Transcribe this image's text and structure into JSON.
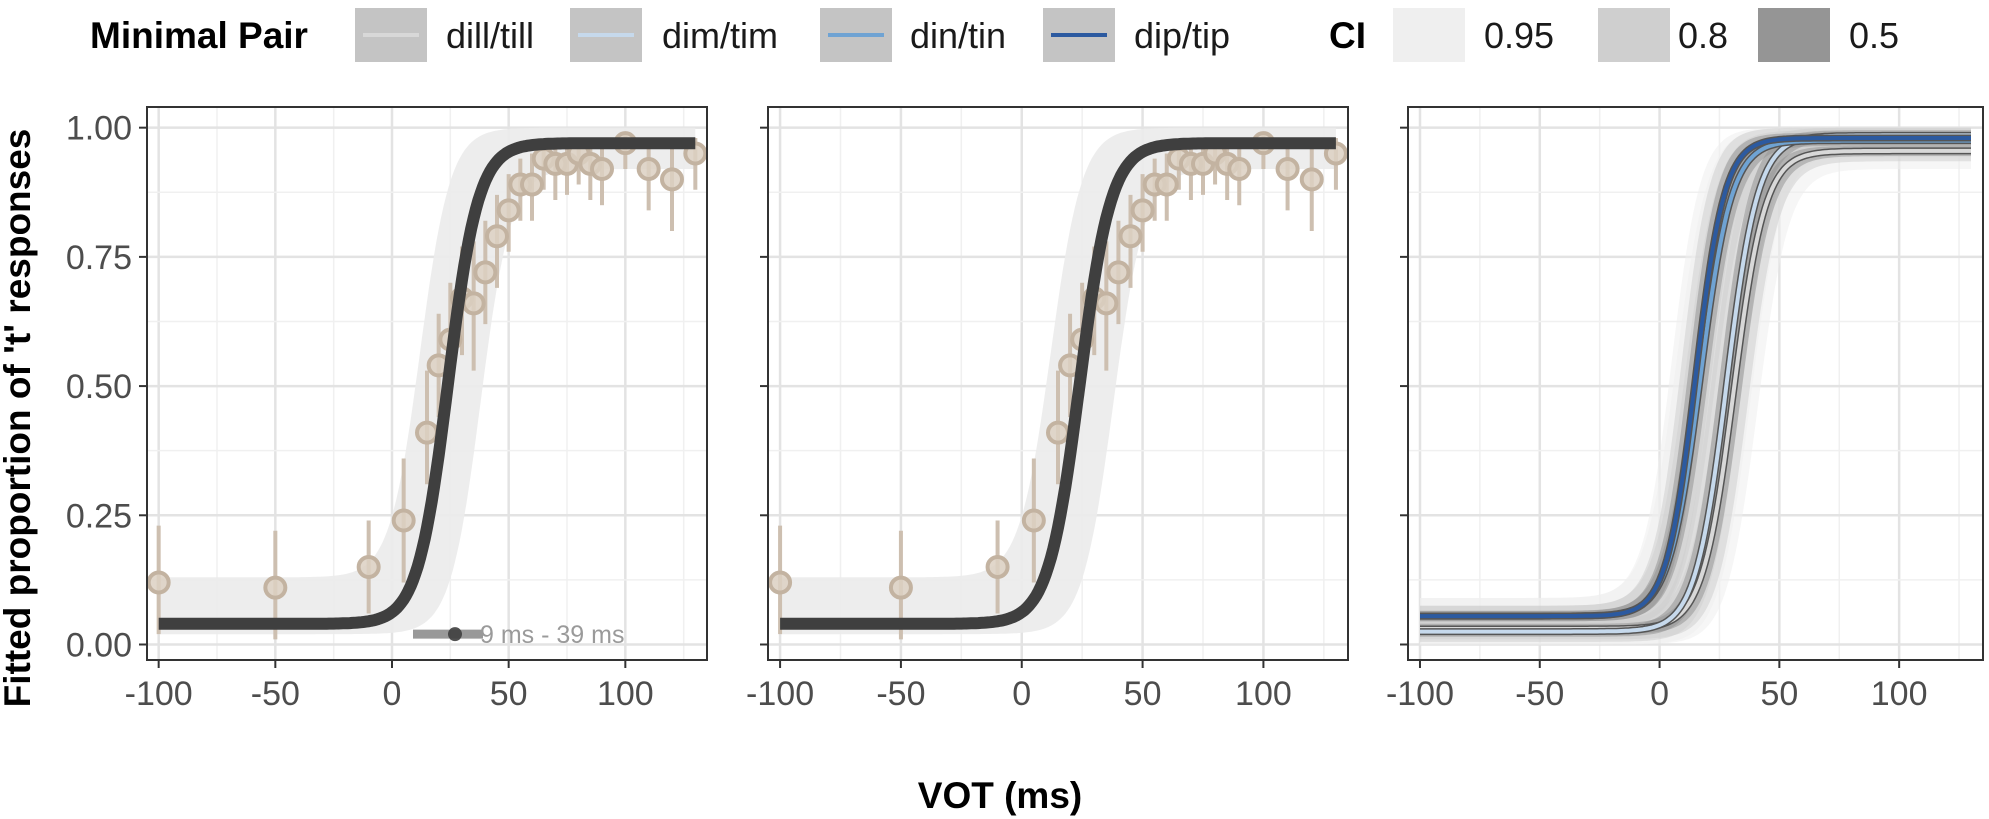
{
  "chart_data": {
    "type": "line",
    "xlabel": "VOT (ms)",
    "ylabel": "Fitted proportion of 't' responses",
    "xlim": [
      -105,
      135
    ],
    "ylim": [
      -0.03,
      1.04
    ],
    "x_ticks": [
      "-100",
      "-50",
      "0",
      "50",
      "100"
    ],
    "x_tick_values": [
      -100,
      -50,
      0,
      50,
      100
    ],
    "y_ticks": [
      "0.00",
      "0.25",
      "0.50",
      "0.75",
      "1.00"
    ],
    "y_tick_values": [
      0,
      0.25,
      0.5,
      0.75,
      1.0
    ],
    "grid": true,
    "legend": {
      "position": "top",
      "minimal_pair_title": "Minimal Pair",
      "minimal_pairs": [
        {
          "label": "dill/till",
          "color": "#d8d8d8"
        },
        {
          "label": "dim/tim",
          "color": "#c6d9ec"
        },
        {
          "label": "din/tin",
          "color": "#6fa3d3"
        },
        {
          "label": "dip/tip",
          "color": "#2c5aa0"
        }
      ],
      "ci_title": "CI",
      "ci_levels": [
        {
          "label": "0.95",
          "color": "#efefef"
        },
        {
          "label": "0.8",
          "color": "#cfcfcf"
        },
        {
          "label": "0.5",
          "color": "#959595"
        }
      ]
    },
    "panels": [
      {
        "curve": {
          "floor": 0.04,
          "ceiling": 0.97,
          "midpoint": 24,
          "scale": 6.5
        },
        "band": {
          "floor_lo": 0.02,
          "floor_hi": 0.13,
          "ceil_lo": 0.92,
          "ceil_hi": 1.0,
          "mid_lo": 12,
          "mid_hi": 38
        },
        "points": [
          {
            "x": -100,
            "y": 0.12,
            "lo": 0.02,
            "hi": 0.23
          },
          {
            "x": -50,
            "y": 0.11,
            "lo": 0.01,
            "hi": 0.22
          },
          {
            "x": -10,
            "y": 0.15,
            "lo": 0.06,
            "hi": 0.24
          },
          {
            "x": 5,
            "y": 0.24,
            "lo": 0.12,
            "hi": 0.36
          },
          {
            "x": 15,
            "y": 0.41,
            "lo": 0.31,
            "hi": 0.53
          },
          {
            "x": 20,
            "y": 0.54,
            "lo": 0.44,
            "hi": 0.64
          },
          {
            "x": 25,
            "y": 0.59,
            "lo": 0.48,
            "hi": 0.7
          },
          {
            "x": 30,
            "y": 0.67,
            "lo": 0.56,
            "hi": 0.77
          },
          {
            "x": 35,
            "y": 0.66,
            "lo": 0.53,
            "hi": 0.78
          },
          {
            "x": 40,
            "y": 0.72,
            "lo": 0.62,
            "hi": 0.82
          },
          {
            "x": 45,
            "y": 0.79,
            "lo": 0.69,
            "hi": 0.87
          },
          {
            "x": 50,
            "y": 0.84,
            "lo": 0.76,
            "hi": 0.91
          },
          {
            "x": 55,
            "y": 0.89,
            "lo": 0.82,
            "hi": 0.94
          },
          {
            "x": 60,
            "y": 0.89,
            "lo": 0.82,
            "hi": 0.95
          },
          {
            "x": 65,
            "y": 0.94,
            "lo": 0.88,
            "hi": 0.97
          },
          {
            "x": 70,
            "y": 0.93,
            "lo": 0.86,
            "hi": 0.97
          },
          {
            "x": 75,
            "y": 0.93,
            "lo": 0.87,
            "hi": 0.98
          },
          {
            "x": 80,
            "y": 0.95,
            "lo": 0.89,
            "hi": 0.98
          },
          {
            "x": 85,
            "y": 0.93,
            "lo": 0.86,
            "hi": 0.98
          },
          {
            "x": 90,
            "y": 0.92,
            "lo": 0.85,
            "hi": 0.97
          },
          {
            "x": 100,
            "y": 0.97,
            "lo": 0.92,
            "hi": 0.99
          },
          {
            "x": 110,
            "y": 0.92,
            "lo": 0.84,
            "hi": 0.97
          },
          {
            "x": 120,
            "y": 0.9,
            "lo": 0.8,
            "hi": 0.96
          },
          {
            "x": 130,
            "y": 0.95,
            "lo": 0.88,
            "hi": 0.98
          }
        ],
        "range_annotation": {
          "text": "9 ms - 39 ms",
          "from": 9,
          "to": 39,
          "dot": 27,
          "y": 0.02
        }
      },
      {
        "curve": {
          "floor": 0.04,
          "ceiling": 0.97,
          "midpoint": 24,
          "scale": 6.5
        },
        "band": {
          "floor_lo": 0.02,
          "floor_hi": 0.13,
          "ceil_lo": 0.92,
          "ceil_hi": 1.0,
          "mid_lo": 12,
          "mid_hi": 38
        },
        "points": [
          {
            "x": -100,
            "y": 0.12,
            "lo": 0.02,
            "hi": 0.23
          },
          {
            "x": -50,
            "y": 0.11,
            "lo": 0.01,
            "hi": 0.22
          },
          {
            "x": -10,
            "y": 0.15,
            "lo": 0.06,
            "hi": 0.24
          },
          {
            "x": 5,
            "y": 0.24,
            "lo": 0.12,
            "hi": 0.36
          },
          {
            "x": 15,
            "y": 0.41,
            "lo": 0.31,
            "hi": 0.53
          },
          {
            "x": 20,
            "y": 0.54,
            "lo": 0.44,
            "hi": 0.64
          },
          {
            "x": 25,
            "y": 0.59,
            "lo": 0.48,
            "hi": 0.7
          },
          {
            "x": 30,
            "y": 0.67,
            "lo": 0.56,
            "hi": 0.77
          },
          {
            "x": 35,
            "y": 0.66,
            "lo": 0.53,
            "hi": 0.78
          },
          {
            "x": 40,
            "y": 0.72,
            "lo": 0.62,
            "hi": 0.82
          },
          {
            "x": 45,
            "y": 0.79,
            "lo": 0.69,
            "hi": 0.87
          },
          {
            "x": 50,
            "y": 0.84,
            "lo": 0.76,
            "hi": 0.91
          },
          {
            "x": 55,
            "y": 0.89,
            "lo": 0.82,
            "hi": 0.94
          },
          {
            "x": 60,
            "y": 0.89,
            "lo": 0.82,
            "hi": 0.95
          },
          {
            "x": 65,
            "y": 0.94,
            "lo": 0.88,
            "hi": 0.97
          },
          {
            "x": 70,
            "y": 0.93,
            "lo": 0.86,
            "hi": 0.97
          },
          {
            "x": 75,
            "y": 0.93,
            "lo": 0.87,
            "hi": 0.98
          },
          {
            "x": 80,
            "y": 0.95,
            "lo": 0.89,
            "hi": 0.98
          },
          {
            "x": 85,
            "y": 0.93,
            "lo": 0.86,
            "hi": 0.98
          },
          {
            "x": 90,
            "y": 0.92,
            "lo": 0.85,
            "hi": 0.97
          },
          {
            "x": 100,
            "y": 0.97,
            "lo": 0.92,
            "hi": 0.99
          },
          {
            "x": 110,
            "y": 0.92,
            "lo": 0.84,
            "hi": 0.97
          },
          {
            "x": 120,
            "y": 0.9,
            "lo": 0.8,
            "hi": 0.96
          },
          {
            "x": 130,
            "y": 0.95,
            "lo": 0.88,
            "hi": 0.98
          }
        ]
      },
      {
        "pairs": [
          {
            "label": "dill/till",
            "floor": 0.03,
            "ceiling": 0.955,
            "midpoint": 31,
            "scale": 6.5
          },
          {
            "label": "dim/tim",
            "floor": 0.025,
            "ceiling": 0.985,
            "midpoint": 28,
            "scale": 6.5
          },
          {
            "label": "din/tin",
            "floor": 0.055,
            "ceiling": 0.975,
            "midpoint": 17,
            "scale": 6.5
          },
          {
            "label": "dip/tip",
            "floor": 0.055,
            "ceiling": 0.98,
            "midpoint": 15,
            "scale": 6.0
          }
        ]
      }
    ]
  }
}
